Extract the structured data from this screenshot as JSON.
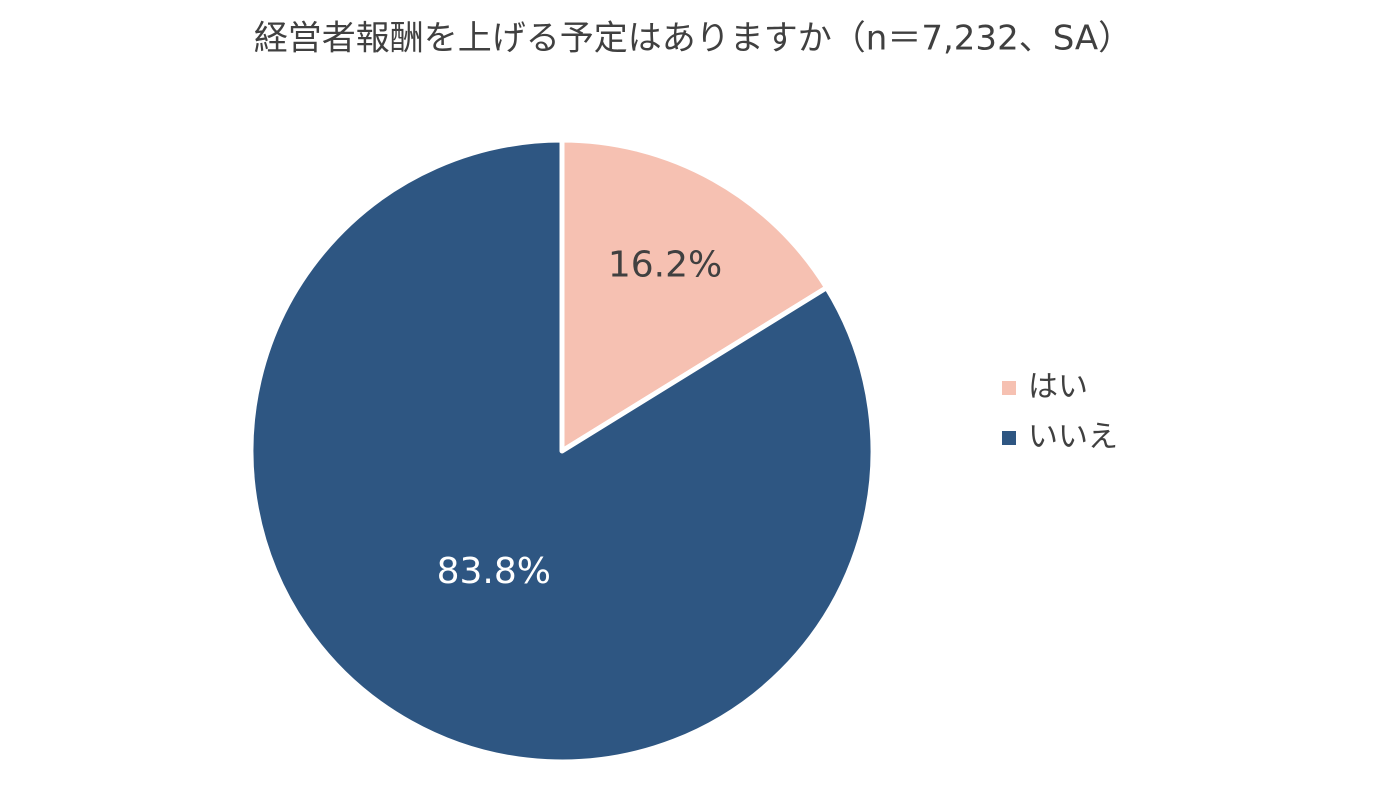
{
  "chart_data": {
    "type": "pie",
    "title": "経営者報酬を上げる予定はありますか（n＝7,232、SA）",
    "categories": [
      "はい",
      "いいえ"
    ],
    "values": [
      16.2,
      83.8
    ],
    "value_labels": [
      "16.2%",
      "83.8%"
    ],
    "colors": [
      "#F6C1B2",
      "#2E5682"
    ],
    "legend": "right"
  }
}
